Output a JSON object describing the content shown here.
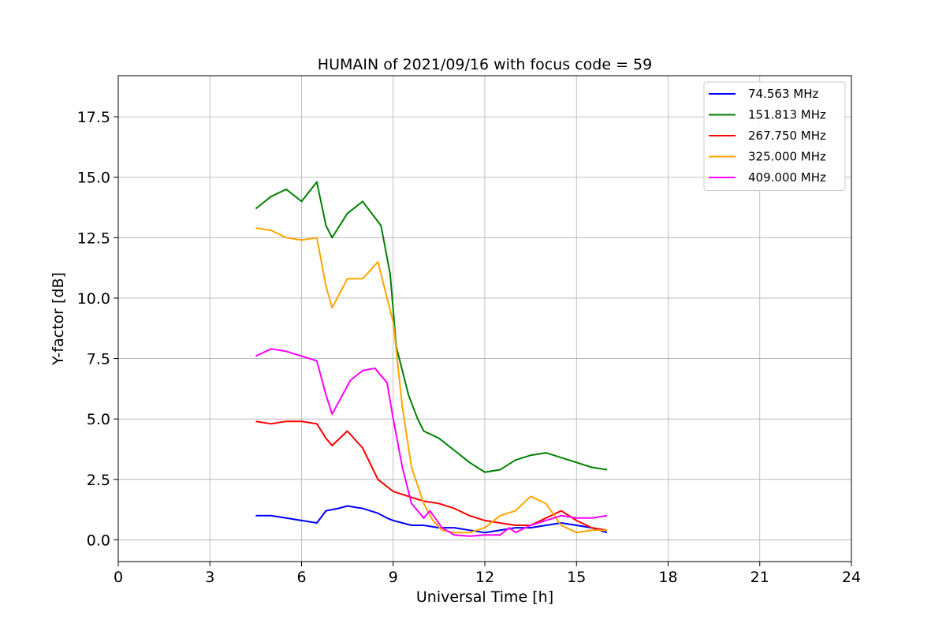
{
  "chart_data": {
    "type": "line",
    "title": "HUMAIN of 2021/09/16 with focus code = 59",
    "xlabel": "Universal Time [h]",
    "ylabel": "Y-factor [dB]",
    "xlim": [
      0,
      24
    ],
    "ylim": [
      -0.9,
      19.2
    ],
    "xticks": [
      0,
      3,
      6,
      9,
      12,
      15,
      18,
      21,
      24
    ],
    "xtick_labels": [
      "0",
      "3",
      "6",
      "9",
      "12",
      "15",
      "18",
      "21",
      "24"
    ],
    "yticks": [
      0,
      2.5,
      5,
      7.5,
      10,
      12.5,
      15,
      17.5
    ],
    "ytick_labels": [
      "0.0",
      "2.5",
      "5.0",
      "7.5",
      "10.0",
      "12.5",
      "15.0",
      "17.5"
    ],
    "grid": true,
    "legend_position": "top-right",
    "series": [
      {
        "name": "  74.563 MHz",
        "color": "#0000ff",
        "x": [
          4.5,
          5.0,
          5.5,
          6.0,
          6.5,
          6.8,
          7.2,
          7.5,
          8.0,
          8.5,
          8.8,
          9.0,
          9.3,
          9.6,
          10.0,
          10.5,
          11.0,
          11.5,
          12.0,
          12.5,
          13.0,
          13.5,
          14.0,
          14.5,
          15.0,
          15.5,
          16.0
        ],
        "y": [
          1.0,
          1.0,
          0.9,
          0.8,
          0.7,
          1.2,
          1.3,
          1.4,
          1.3,
          1.1,
          0.9,
          0.8,
          0.7,
          0.6,
          0.6,
          0.5,
          0.5,
          0.4,
          0.3,
          0.4,
          0.5,
          0.5,
          0.6,
          0.7,
          0.6,
          0.5,
          0.3
        ]
      },
      {
        "name": "151.813 MHz",
        "color": "#008000",
        "x": [
          4.5,
          5.0,
          5.5,
          6.0,
          6.5,
          6.8,
          7.0,
          7.5,
          8.0,
          8.3,
          8.6,
          8.9,
          9.0,
          9.1,
          9.3,
          9.5,
          9.8,
          10.0,
          10.5,
          11.0,
          11.5,
          12.0,
          12.5,
          13.0,
          13.5,
          14.0,
          14.5,
          15.0,
          15.5,
          16.0
        ],
        "y": [
          13.7,
          14.2,
          14.5,
          14.0,
          14.8,
          13.0,
          12.5,
          13.5,
          14.0,
          13.5,
          13.0,
          11.0,
          9.5,
          8.0,
          7.0,
          6.0,
          5.0,
          4.5,
          4.2,
          3.7,
          3.2,
          2.8,
          2.9,
          3.3,
          3.5,
          3.6,
          3.4,
          3.2,
          3.0,
          2.9
        ]
      },
      {
        "name": "267.750 MHz",
        "color": "#ff0000",
        "x": [
          4.5,
          5.0,
          5.5,
          6.0,
          6.5,
          6.8,
          7.0,
          7.5,
          8.0,
          8.5,
          9.0,
          9.5,
          10.0,
          10.5,
          11.0,
          11.5,
          12.0,
          12.5,
          13.0,
          13.5,
          14.0,
          14.5,
          15.0,
          15.5,
          16.0
        ],
        "y": [
          4.9,
          4.8,
          4.9,
          4.9,
          4.8,
          4.2,
          3.9,
          4.5,
          3.8,
          2.5,
          2.0,
          1.8,
          1.6,
          1.5,
          1.3,
          1.0,
          0.8,
          0.7,
          0.6,
          0.6,
          0.9,
          1.2,
          0.8,
          0.5,
          0.4
        ]
      },
      {
        "name": "325.000 MHz",
        "color": "#ffa500",
        "x": [
          4.5,
          5.0,
          5.5,
          6.0,
          6.5,
          6.8,
          7.0,
          7.5,
          8.0,
          8.5,
          8.8,
          9.0,
          9.3,
          9.6,
          10.0,
          10.3,
          10.6,
          11.0,
          11.5,
          12.0,
          12.5,
          13.0,
          13.5,
          14.0,
          14.5,
          15.0,
          15.5,
          16.0
        ],
        "y": [
          12.9,
          12.8,
          12.5,
          12.4,
          12.5,
          10.5,
          9.6,
          10.8,
          10.8,
          11.5,
          10.0,
          9.0,
          5.5,
          3.0,
          1.5,
          0.8,
          0.4,
          0.3,
          0.3,
          0.5,
          1.0,
          1.2,
          1.8,
          1.5,
          0.6,
          0.3,
          0.4,
          0.4
        ]
      },
      {
        "name": "409.000 MHz",
        "color": "#ff00ff",
        "x": [
          4.5,
          5.0,
          5.5,
          6.0,
          6.5,
          6.8,
          7.0,
          7.3,
          7.6,
          8.0,
          8.4,
          8.8,
          9.0,
          9.3,
          9.6,
          10.0,
          10.2,
          10.6,
          11.0,
          11.5,
          12.0,
          12.5,
          12.8,
          13.0,
          13.5,
          14.0,
          14.5,
          15.0,
          15.5,
          16.0
        ],
        "y": [
          7.6,
          7.9,
          7.8,
          7.6,
          7.4,
          6.0,
          5.2,
          5.9,
          6.6,
          7.0,
          7.1,
          6.5,
          5.0,
          3.0,
          1.5,
          0.9,
          1.2,
          0.5,
          0.2,
          0.15,
          0.2,
          0.2,
          0.5,
          0.3,
          0.6,
          0.8,
          1.0,
          0.9,
          0.9,
          1.0
        ]
      }
    ]
  }
}
